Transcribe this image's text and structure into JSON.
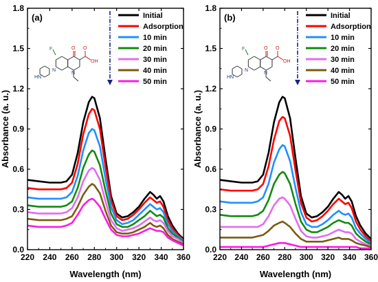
{
  "chart_data": [
    {
      "type": "line",
      "panel_label": "(a)",
      "xlabel": "Wavelength (nm)",
      "ylabel": "Absorbance (a. u.)",
      "xlim": [
        220,
        360
      ],
      "ylim": [
        0,
        1.8
      ],
      "x_ticks": [
        220,
        240,
        260,
        280,
        300,
        320,
        340,
        360
      ],
      "y_ticks": [
        0.0,
        0.3,
        0.6,
        0.9,
        1.2,
        1.5,
        1.8
      ],
      "y_tick_labels": [
        "0.0",
        "0.3",
        "0.6",
        "0.9",
        "1.2",
        "1.5",
        "1.8"
      ],
      "legend_position": "top-right",
      "x": [
        220,
        230,
        240,
        250,
        255,
        260,
        265,
        270,
        275,
        278,
        280,
        285,
        290,
        295,
        300,
        305,
        310,
        315,
        320,
        325,
        330,
        333,
        336,
        339,
        342,
        346,
        350,
        355,
        360
      ],
      "series": [
        {
          "name": "Initial",
          "color": "#000000",
          "values": [
            0.52,
            0.51,
            0.5,
            0.5,
            0.51,
            0.56,
            0.72,
            0.95,
            1.1,
            1.14,
            1.13,
            0.98,
            0.68,
            0.4,
            0.27,
            0.24,
            0.25,
            0.28,
            0.32,
            0.38,
            0.43,
            0.41,
            0.38,
            0.4,
            0.36,
            0.25,
            0.18,
            0.12,
            0.08
          ]
        },
        {
          "name": "Adsorption",
          "color": "#ff0000",
          "values": [
            0.46,
            0.45,
            0.45,
            0.45,
            0.46,
            0.5,
            0.64,
            0.86,
            1.01,
            1.05,
            1.04,
            0.9,
            0.62,
            0.37,
            0.25,
            0.22,
            0.23,
            0.26,
            0.3,
            0.35,
            0.39,
            0.37,
            0.35,
            0.36,
            0.32,
            0.22,
            0.16,
            0.11,
            0.07
          ]
        },
        {
          "name": "10 min",
          "color": "#1e90ff",
          "values": [
            0.39,
            0.38,
            0.38,
            0.38,
            0.39,
            0.43,
            0.55,
            0.74,
            0.87,
            0.9,
            0.89,
            0.77,
            0.53,
            0.32,
            0.22,
            0.19,
            0.2,
            0.22,
            0.26,
            0.3,
            0.34,
            0.32,
            0.3,
            0.31,
            0.28,
            0.19,
            0.14,
            0.1,
            0.07
          ]
        },
        {
          "name": "20 min",
          "color": "#118a11",
          "values": [
            0.33,
            0.32,
            0.32,
            0.32,
            0.33,
            0.36,
            0.46,
            0.61,
            0.71,
            0.74,
            0.73,
            0.63,
            0.44,
            0.27,
            0.19,
            0.17,
            0.17,
            0.19,
            0.22,
            0.25,
            0.29,
            0.27,
            0.25,
            0.26,
            0.24,
            0.16,
            0.12,
            0.09,
            0.06
          ]
        },
        {
          "name": "30 min",
          "color": "#e36bf0",
          "values": [
            0.28,
            0.27,
            0.27,
            0.27,
            0.28,
            0.31,
            0.39,
            0.51,
            0.59,
            0.61,
            0.6,
            0.52,
            0.36,
            0.22,
            0.16,
            0.14,
            0.15,
            0.16,
            0.18,
            0.21,
            0.24,
            0.22,
            0.21,
            0.22,
            0.2,
            0.14,
            0.1,
            0.08,
            0.05
          ]
        },
        {
          "name": "40 min",
          "color": "#7a5a10",
          "values": [
            0.23,
            0.22,
            0.22,
            0.22,
            0.23,
            0.25,
            0.32,
            0.41,
            0.47,
            0.49,
            0.48,
            0.42,
            0.29,
            0.18,
            0.13,
            0.12,
            0.12,
            0.13,
            0.15,
            0.17,
            0.2,
            0.18,
            0.17,
            0.18,
            0.16,
            0.11,
            0.08,
            0.06,
            0.04
          ]
        },
        {
          "name": "50 min",
          "color": "#ff19e6",
          "values": [
            0.18,
            0.17,
            0.17,
            0.17,
            0.18,
            0.2,
            0.26,
            0.33,
            0.37,
            0.38,
            0.37,
            0.32,
            0.23,
            0.15,
            0.11,
            0.1,
            0.1,
            0.11,
            0.12,
            0.14,
            0.16,
            0.15,
            0.14,
            0.14,
            0.13,
            0.09,
            0.07,
            0.05,
            0.03
          ]
        }
      ]
    },
    {
      "type": "line",
      "panel_label": "(b)",
      "xlabel": "Wavelength (nm)",
      "ylabel": "Absorbance (a. u.)",
      "xlim": [
        220,
        360
      ],
      "ylim": [
        0,
        1.8
      ],
      "x_ticks": [
        220,
        240,
        260,
        280,
        300,
        320,
        340,
        360
      ],
      "y_ticks": [
        0.0,
        0.3,
        0.6,
        0.9,
        1.2,
        1.5,
        1.8
      ],
      "y_tick_labels": [
        "0.0",
        "0.3",
        "0.6",
        "0.9",
        "1.2",
        "1.5",
        "1.8"
      ],
      "legend_position": "top-right",
      "x": [
        220,
        230,
        240,
        250,
        255,
        260,
        265,
        270,
        275,
        278,
        280,
        285,
        290,
        295,
        300,
        305,
        310,
        315,
        320,
        325,
        330,
        333,
        336,
        339,
        342,
        346,
        350,
        355,
        360
      ],
      "series": [
        {
          "name": "Initial",
          "color": "#000000",
          "values": [
            0.52,
            0.51,
            0.5,
            0.5,
            0.51,
            0.56,
            0.72,
            0.95,
            1.1,
            1.14,
            1.13,
            0.98,
            0.68,
            0.4,
            0.27,
            0.24,
            0.25,
            0.28,
            0.32,
            0.38,
            0.43,
            0.41,
            0.38,
            0.4,
            0.36,
            0.25,
            0.18,
            0.12,
            0.08
          ]
        },
        {
          "name": "Adsorption",
          "color": "#ff0000",
          "values": [
            0.45,
            0.44,
            0.44,
            0.44,
            0.45,
            0.49,
            0.62,
            0.82,
            0.96,
            0.99,
            0.98,
            0.85,
            0.59,
            0.35,
            0.24,
            0.21,
            0.22,
            0.25,
            0.29,
            0.34,
            0.38,
            0.36,
            0.34,
            0.35,
            0.31,
            0.21,
            0.15,
            0.1,
            0.06
          ]
        },
        {
          "name": "10 min",
          "color": "#1e90ff",
          "values": [
            0.36,
            0.35,
            0.35,
            0.35,
            0.36,
            0.39,
            0.49,
            0.65,
            0.75,
            0.78,
            0.77,
            0.66,
            0.46,
            0.28,
            0.19,
            0.17,
            0.17,
            0.19,
            0.22,
            0.26,
            0.29,
            0.27,
            0.26,
            0.27,
            0.24,
            0.16,
            0.12,
            0.08,
            0.05
          ]
        },
        {
          "name": "20 min",
          "color": "#118a11",
          "values": [
            0.26,
            0.25,
            0.25,
            0.25,
            0.26,
            0.29,
            0.37,
            0.49,
            0.56,
            0.58,
            0.57,
            0.49,
            0.34,
            0.21,
            0.15,
            0.13,
            0.13,
            0.15,
            0.17,
            0.2,
            0.22,
            0.21,
            0.2,
            0.2,
            0.18,
            0.12,
            0.09,
            0.06,
            0.04
          ]
        },
        {
          "name": "30 min",
          "color": "#e36bf0",
          "values": [
            0.17,
            0.17,
            0.17,
            0.17,
            0.17,
            0.19,
            0.25,
            0.33,
            0.38,
            0.39,
            0.38,
            0.33,
            0.23,
            0.14,
            0.1,
            0.09,
            0.09,
            0.1,
            0.11,
            0.13,
            0.15,
            0.14,
            0.13,
            0.13,
            0.12,
            0.08,
            0.06,
            0.04,
            0.03
          ]
        },
        {
          "name": "40 min",
          "color": "#7a5a10",
          "values": [
            0.09,
            0.09,
            0.09,
            0.09,
            0.1,
            0.11,
            0.14,
            0.18,
            0.2,
            0.21,
            0.2,
            0.17,
            0.12,
            0.08,
            0.06,
            0.06,
            0.06,
            0.06,
            0.07,
            0.08,
            0.09,
            0.08,
            0.08,
            0.08,
            0.07,
            0.05,
            0.04,
            0.03,
            0.02
          ]
        },
        {
          "name": "50 min",
          "color": "#ff19e6",
          "values": [
            0.02,
            0.02,
            0.02,
            0.02,
            0.02,
            0.02,
            0.03,
            0.04,
            0.05,
            0.05,
            0.05,
            0.04,
            0.03,
            0.02,
            0.02,
            0.02,
            0.02,
            0.02,
            0.02,
            0.02,
            0.02,
            0.02,
            0.02,
            0.02,
            0.02,
            0.02,
            0.01,
            0.01,
            0.01
          ]
        }
      ]
    }
  ],
  "molecule": {
    "atoms": {
      "F": "F",
      "O": "O",
      "OH": "OH",
      "N": "N",
      "HN": "HN"
    },
    "arrow_color": "#1a237e"
  }
}
